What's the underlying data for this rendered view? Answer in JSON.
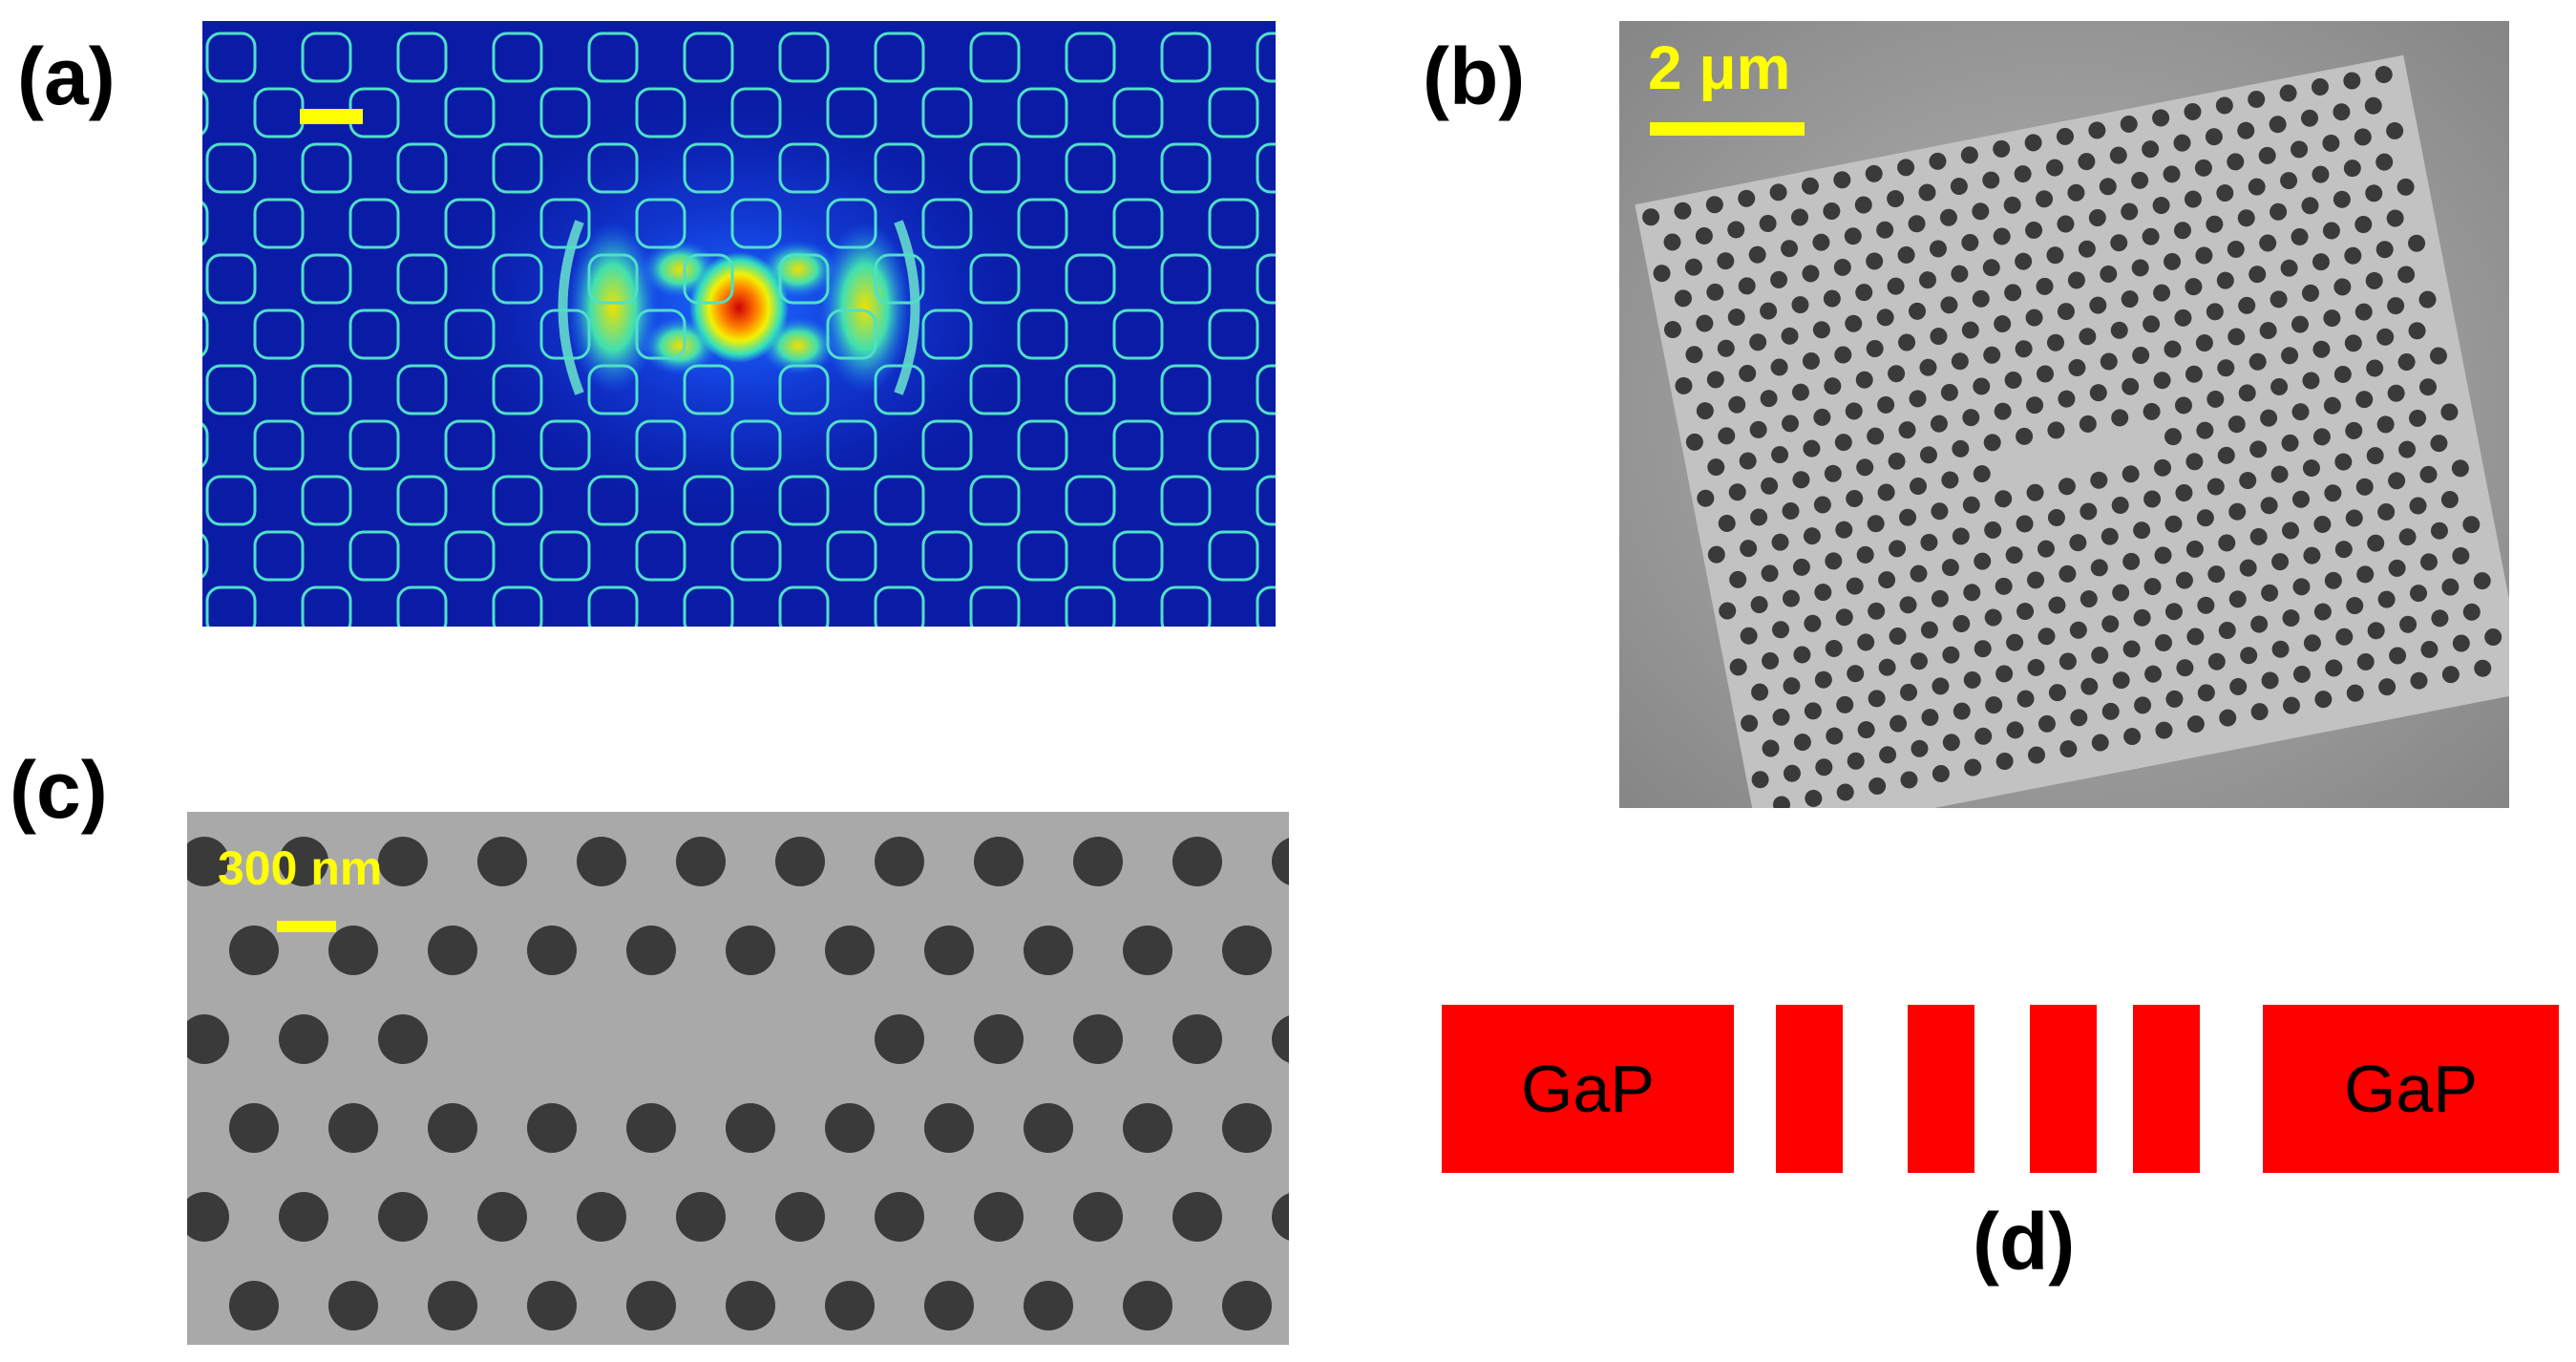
{
  "panels": {
    "a": {
      "label": "(a)"
    },
    "b": {
      "label": "(b)",
      "scalebar_text": "2 μm"
    },
    "c": {
      "label": "(c)",
      "scalebar_text": "300 nm"
    },
    "d": {
      "label": "(d)",
      "left_block_text": "GaP",
      "right_block_text": "GaP"
    }
  },
  "colors": {
    "field_background": "#0a1ca6",
    "hole_outline": "#4fe0c8",
    "scalebar": "#ffff00",
    "sem_background": "#a8a8a8",
    "sem_hole": "#3a3a3a",
    "gap_block": "#ff0000"
  }
}
